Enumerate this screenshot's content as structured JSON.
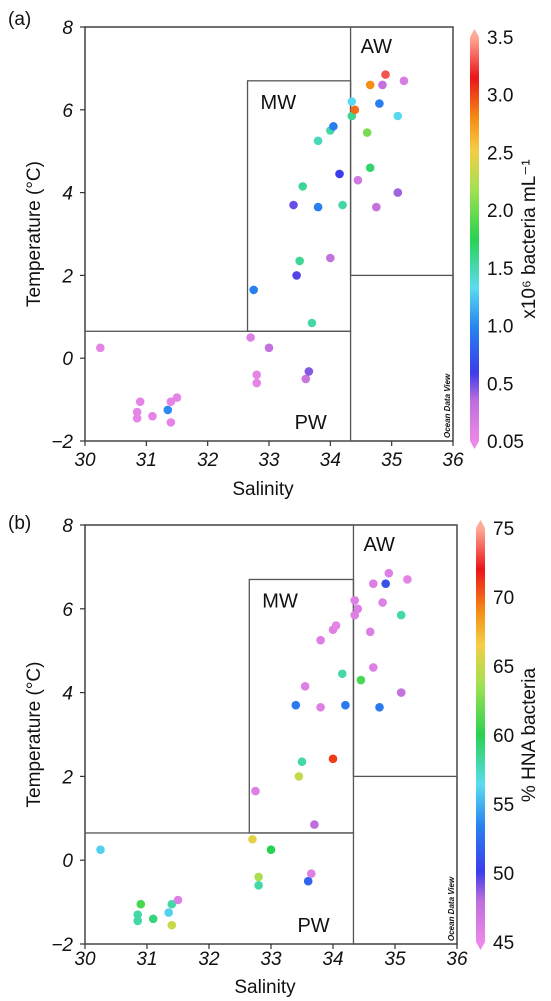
{
  "chart_data": [
    {
      "type": "scatter",
      "panel_label": "(a)",
      "xlabel": "Salinity",
      "ylabel": "Temperature (°C)",
      "xlim": [
        30,
        36
      ],
      "ylim": [
        -2,
        8
      ],
      "xticks": [
        "30",
        "31",
        "32",
        "33",
        "34",
        "35",
        "36"
      ],
      "yticks": [
        "−2",
        "0",
        "2",
        "4",
        "6",
        "8"
      ],
      "regions": [
        {
          "name": "AW",
          "x": [
            34.33,
            36
          ],
          "y": [
            2,
            8
          ]
        },
        {
          "name": "MW",
          "x": [
            32.65,
            34.33
          ],
          "y": [
            0.65,
            6.7
          ]
        },
        {
          "name": "PW",
          "x": [
            30,
            34.33
          ],
          "y": [
            -2,
            0.65
          ]
        }
      ],
      "watermark": "Ocean Data View",
      "colorbar": {
        "title": "x10⁶ bacteria mL⁻¹",
        "ticks": [
          "3.5",
          "3.0",
          "2.5",
          "2.0",
          "1.5",
          "1.0",
          "0.5",
          "0.05"
        ],
        "range": [
          0.05,
          3.5
        ]
      },
      "points": [
        {
          "x": 30.25,
          "y": 0.25,
          "c": 0.1
        },
        {
          "x": 30.9,
          "y": -1.05,
          "c": 0.1
        },
        {
          "x": 31.4,
          "y": -1.05,
          "c": 0.1
        },
        {
          "x": 31.5,
          "y": -0.95,
          "c": 0.1
        },
        {
          "x": 30.85,
          "y": -1.3,
          "c": 0.1
        },
        {
          "x": 31.1,
          "y": -1.4,
          "c": 0.1
        },
        {
          "x": 31.35,
          "y": -1.25,
          "c": 1.05
        },
        {
          "x": 30.85,
          "y": -1.45,
          "c": 0.1
        },
        {
          "x": 31.4,
          "y": -1.55,
          "c": 0.1
        },
        {
          "x": 32.7,
          "y": 0.5,
          "c": 0.15
        },
        {
          "x": 32.8,
          "y": -0.4,
          "c": 0.1
        },
        {
          "x": 32.8,
          "y": -0.6,
          "c": 0.1
        },
        {
          "x": 33.0,
          "y": 0.25,
          "c": 0.35
        },
        {
          "x": 33.6,
          "y": -0.5,
          "c": 0.3
        },
        {
          "x": 33.65,
          "y": -0.32,
          "c": 0.5
        },
        {
          "x": 33.7,
          "y": 0.85,
          "c": 1.55
        },
        {
          "x": 32.75,
          "y": 1.65,
          "c": 1.0
        },
        {
          "x": 33.45,
          "y": 2.0,
          "c": 0.6
        },
        {
          "x": 33.5,
          "y": 2.35,
          "c": 1.6
        },
        {
          "x": 34.0,
          "y": 2.42,
          "c": 0.35
        },
        {
          "x": 33.4,
          "y": 3.7,
          "c": 0.55
        },
        {
          "x": 33.8,
          "y": 3.65,
          "c": 1.0
        },
        {
          "x": 34.2,
          "y": 3.7,
          "c": 1.55
        },
        {
          "x": 34.75,
          "y": 3.65,
          "c": 0.35
        },
        {
          "x": 35.1,
          "y": 4.0,
          "c": 0.45
        },
        {
          "x": 33.55,
          "y": 4.15,
          "c": 1.6
        },
        {
          "x": 34.15,
          "y": 4.45,
          "c": 0.65
        },
        {
          "x": 34.45,
          "y": 4.3,
          "c": 0.25
        },
        {
          "x": 34.65,
          "y": 4.6,
          "c": 1.7
        },
        {
          "x": 33.8,
          "y": 5.25,
          "c": 1.5
        },
        {
          "x": 34.0,
          "y": 5.5,
          "c": 1.55
        },
        {
          "x": 34.05,
          "y": 5.6,
          "c": 1.0
        },
        {
          "x": 34.6,
          "y": 5.45,
          "c": 2.05
        },
        {
          "x": 34.35,
          "y": 5.85,
          "c": 1.6
        },
        {
          "x": 35.1,
          "y": 5.85,
          "c": 1.35
        },
        {
          "x": 34.35,
          "y": 6.2,
          "c": 1.35
        },
        {
          "x": 34.4,
          "y": 6.0,
          "c": 2.9
        },
        {
          "x": 34.8,
          "y": 6.15,
          "c": 1.0
        },
        {
          "x": 34.65,
          "y": 6.6,
          "c": 2.8
        },
        {
          "x": 34.85,
          "y": 6.6,
          "c": 0.35
        },
        {
          "x": 34.9,
          "y": 6.85,
          "c": 3.3
        },
        {
          "x": 35.2,
          "y": 6.7,
          "c": 0.2
        }
      ]
    },
    {
      "type": "scatter",
      "panel_label": "(b)",
      "xlabel": "Salinity",
      "ylabel": "Temperature (°C)",
      "xlim": [
        30,
        36
      ],
      "ylim": [
        -2,
        8
      ],
      "xticks": [
        "30",
        "31",
        "32",
        "33",
        "34",
        "35",
        "36"
      ],
      "yticks": [
        "−2",
        "0",
        "2",
        "4",
        "6",
        "8"
      ],
      "regions": [
        {
          "name": "AW",
          "x": [
            34.33,
            36
          ],
          "y": [
            2,
            8
          ]
        },
        {
          "name": "MW",
          "x": [
            32.65,
            34.33
          ],
          "y": [
            0.65,
            6.7
          ]
        },
        {
          "name": "PW",
          "x": [
            30,
            34.33
          ],
          "y": [
            -2,
            0.65
          ]
        }
      ],
      "watermark": "Ocean Data View",
      "colorbar": {
        "title": "% HNA bacteria",
        "ticks": [
          "75",
          "70",
          "65",
          "60",
          "55",
          "50",
          "45"
        ],
        "range": [
          45,
          75
        ]
      },
      "points": [
        {
          "x": 30.25,
          "y": 0.25,
          "c": 56
        },
        {
          "x": 30.9,
          "y": -1.05,
          "c": 61
        },
        {
          "x": 31.4,
          "y": -1.05,
          "c": 58
        },
        {
          "x": 31.5,
          "y": -0.95,
          "c": 46
        },
        {
          "x": 30.85,
          "y": -1.3,
          "c": 58
        },
        {
          "x": 31.1,
          "y": -1.4,
          "c": 59
        },
        {
          "x": 31.35,
          "y": -1.25,
          "c": 56
        },
        {
          "x": 30.85,
          "y": -1.45,
          "c": 58
        },
        {
          "x": 31.4,
          "y": -1.55,
          "c": 65
        },
        {
          "x": 32.7,
          "y": 0.5,
          "c": 66
        },
        {
          "x": 32.8,
          "y": -0.4,
          "c": 64
        },
        {
          "x": 32.8,
          "y": -0.6,
          "c": 58
        },
        {
          "x": 33.0,
          "y": 0.25,
          "c": 60
        },
        {
          "x": 33.6,
          "y": -0.5,
          "c": 52
        },
        {
          "x": 33.65,
          "y": -0.32,
          "c": 46
        },
        {
          "x": 33.7,
          "y": 0.85,
          "c": 48
        },
        {
          "x": 32.75,
          "y": 1.65,
          "c": 46
        },
        {
          "x": 33.45,
          "y": 2.0,
          "c": 65
        },
        {
          "x": 33.5,
          "y": 2.35,
          "c": 58
        },
        {
          "x": 34.0,
          "y": 2.42,
          "c": 71
        },
        {
          "x": 33.4,
          "y": 3.7,
          "c": 53
        },
        {
          "x": 33.8,
          "y": 3.65,
          "c": 46
        },
        {
          "x": 34.2,
          "y": 3.7,
          "c": 53
        },
        {
          "x": 34.75,
          "y": 3.65,
          "c": 53
        },
        {
          "x": 35.1,
          "y": 4.0,
          "c": 47.5
        },
        {
          "x": 33.55,
          "y": 4.15,
          "c": 46
        },
        {
          "x": 34.15,
          "y": 4.45,
          "c": 58
        },
        {
          "x": 34.45,
          "y": 4.3,
          "c": 61
        },
        {
          "x": 34.65,
          "y": 4.6,
          "c": 46
        },
        {
          "x": 33.8,
          "y": 5.25,
          "c": 46
        },
        {
          "x": 34.0,
          "y": 5.5,
          "c": 46
        },
        {
          "x": 34.05,
          "y": 5.6,
          "c": 45.5
        },
        {
          "x": 34.6,
          "y": 5.45,
          "c": 46
        },
        {
          "x": 34.35,
          "y": 5.85,
          "c": 46
        },
        {
          "x": 35.1,
          "y": 5.85,
          "c": 58
        },
        {
          "x": 34.35,
          "y": 6.2,
          "c": 46
        },
        {
          "x": 34.4,
          "y": 6.0,
          "c": 46
        },
        {
          "x": 34.8,
          "y": 6.15,
          "c": 46
        },
        {
          "x": 34.65,
          "y": 6.6,
          "c": 46
        },
        {
          "x": 34.85,
          "y": 6.6,
          "c": 51
        },
        {
          "x": 34.9,
          "y": 6.85,
          "c": 46
        },
        {
          "x": 35.2,
          "y": 6.7,
          "c": 45.5
        }
      ]
    }
  ]
}
